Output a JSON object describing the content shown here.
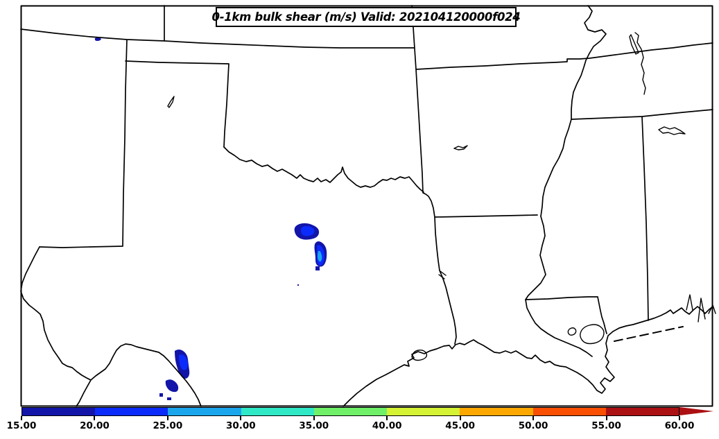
{
  "title": "0-1km bulk shear (m/s) Valid: 202104120000f024",
  "colorbar": {
    "units": "m/s",
    "ticks": [
      {
        "label": "15.00"
      },
      {
        "label": "20.00"
      },
      {
        "label": "25.00"
      },
      {
        "label": "30.00"
      },
      {
        "label": "35.00"
      },
      {
        "label": "40.00"
      },
      {
        "label": "45.00"
      },
      {
        "label": "50.00"
      },
      {
        "label": "55.00"
      },
      {
        "label": "60.00"
      }
    ],
    "segments": [
      {
        "range": "15-20",
        "color": "#1215a8"
      },
      {
        "range": "20-25",
        "color": "#0b2bfa"
      },
      {
        "range": "25-30",
        "color": "#1ba6ec"
      },
      {
        "range": "30-35",
        "color": "#2fe8c6"
      },
      {
        "range": "35-40",
        "color": "#70f069"
      },
      {
        "range": "40-45",
        "color": "#d5f233"
      },
      {
        "range": "45-50",
        "color": "#fca800"
      },
      {
        "range": "50-55",
        "color": "#fa4e02"
      },
      {
        "range": "55-60",
        "color": "#ab1013"
      }
    ],
    "arrow_color": "#ab1013"
  },
  "map": {
    "line_color": "#000000",
    "background_color": "#ffffff",
    "filled_contours": [
      {
        "range": "15-20",
        "color": "#1215a8"
      },
      {
        "range": "20-25",
        "color": "#0b2bfa"
      },
      {
        "range": "25-30",
        "color": "#1ba6ec"
      }
    ]
  }
}
